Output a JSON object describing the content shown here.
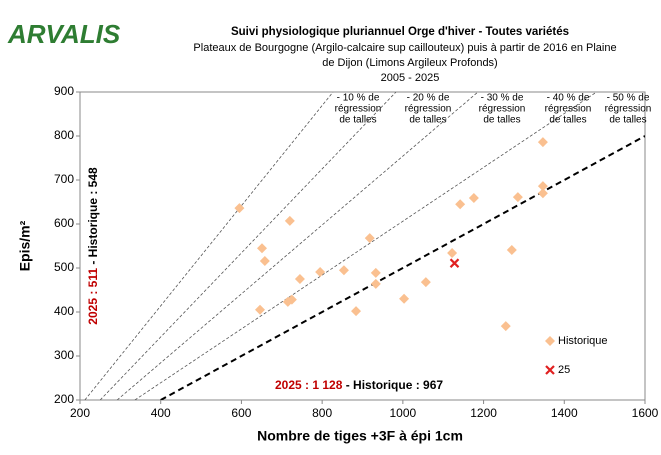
{
  "chart_data": {
    "type": "scatter",
    "logo": "ARVALIS",
    "title": "Suivi physiologique pluriannuel Orge d'hiver - Toutes variétés",
    "subtitle": [
      "Plateaux de Bourgogne (Argilo-calcaire sup caillouteux) puis à partir de 2016 en Plaine",
      "de Dijon (Limons Argileux Profonds)",
      "2005 - 2025"
    ],
    "x_label": "Nombre de tiges +3F à épi 1cm",
    "y_label": "Epis/m²",
    "xlim": [
      200,
      1600
    ],
    "ylim": [
      200,
      900
    ],
    "xticks": [
      200,
      400,
      600,
      800,
      1000,
      1200,
      1400,
      1600
    ],
    "yticks": [
      200,
      300,
      400,
      500,
      600,
      700,
      800,
      900
    ],
    "series": [
      {
        "name": "Historique",
        "color": "#fac090",
        "marker": "diamond",
        "x": [
          595,
          651,
          658,
          646,
          720,
          715,
          725,
          745,
          795,
          854,
          884,
          918,
          933,
          933,
          1003,
          1057,
          1122,
          1142,
          1176,
          1255,
          1270,
          1285,
          1347,
          1347,
          1347
        ],
        "y": [
          636,
          545,
          516,
          405,
          607,
          423,
          428,
          475,
          491,
          495,
          402,
          568,
          489,
          464,
          430,
          468,
          534,
          645,
          659,
          368,
          541,
          661,
          786,
          686,
          670
        ]
      },
      {
        "name": "25",
        "color": "#e02020",
        "marker": "cross",
        "x": [
          1128
        ],
        "y": [
          511
        ]
      }
    ],
    "lines": [
      {
        "label": [
          "- 10 % de",
          "régression",
          "de talles"
        ],
        "x": [
          212,
          827
        ],
        "y": [
          200,
          900
        ],
        "bold": false
      },
      {
        "label": [
          "- 20 % de",
          "régression",
          "de talles"
        ],
        "x": [
          250,
          983
        ],
        "y": [
          200,
          900
        ],
        "bold": false
      },
      {
        "label": [
          "- 30 % de",
          "régression",
          "de talles"
        ],
        "x": [
          292,
          1186
        ],
        "y": [
          200,
          900
        ],
        "bold": false
      },
      {
        "label": [
          "- 40 % de",
          "régression",
          "de talles"
        ],
        "x": [
          336,
          1480
        ],
        "y": [
          200,
          900
        ],
        "bold": false
      },
      {
        "label": [
          "- 50 % de",
          "régression",
          "de talles"
        ],
        "x": [
          400,
          1600
        ],
        "y": [
          200,
          800
        ],
        "bold": true
      }
    ],
    "annotation_x": {
      "red": "2025 : 1 128",
      "black": " - Historique : 967"
    },
    "annotation_y": {
      "red": "2025 : 511",
      "black": " - Historique : 548"
    }
  }
}
